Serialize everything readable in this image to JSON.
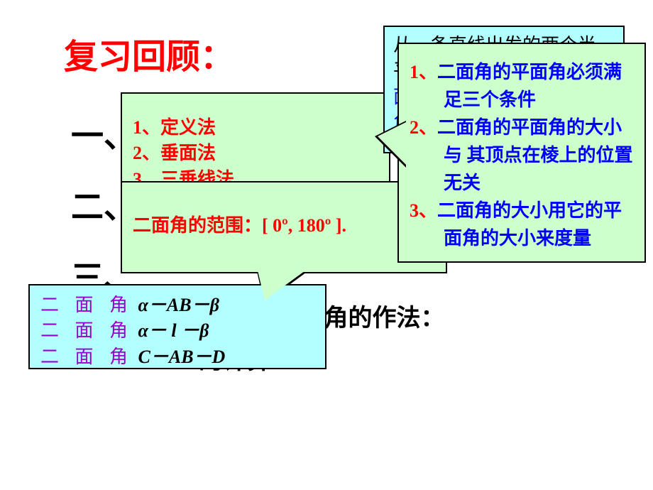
{
  "colors": {
    "background": "#ffffff",
    "title": "#ff0000",
    "heading": "#000000",
    "cyan_bg": "#b3ffff",
    "green_bg": "#ccffcc",
    "border": "#000000",
    "purple": "#9900cc",
    "red": "#ff0000",
    "blue": "#0000ff"
  },
  "title": "复习回顾：",
  "bg_headings": {
    "h1": "一、二",
    "h2": "二、",
    "h3": "三、"
  },
  "bg_text_right": "）平      角的作法：",
  "bg_text_right2": "的计算：",
  "cyan_box": {
    "label": "二 面 角",
    "line1_math": "α－AB－β",
    "line2_math": "α－ l －β",
    "line3_math": "C－AB－D"
  },
  "green_top": {
    "item1": "1、定义法",
    "item2": "2、垂面法",
    "item3": "3、三垂线法"
  },
  "green_bottom": {
    "range": "二面角的范围：[ 0º, 180º ]."
  },
  "blue_box": {
    "line1": "从一条直线出发的两个半",
    "line2": "平",
    "line3": "面",
    "line4": "角"
  },
  "right_green": {
    "row1_num": "1、",
    "row1_txt": "二面角的平面角必须满足三个条件",
    "row2_num": "2、",
    "row2_txt": "二面角的平面角的大小与 其顶点在棱上的位置无关",
    "row3_num": "3、",
    "row3_txt": "二面角的大小用它的平面角的大小来度量"
  },
  "fonts": {
    "title_size": 48,
    "heading_size": 46,
    "body_size": 26
  }
}
